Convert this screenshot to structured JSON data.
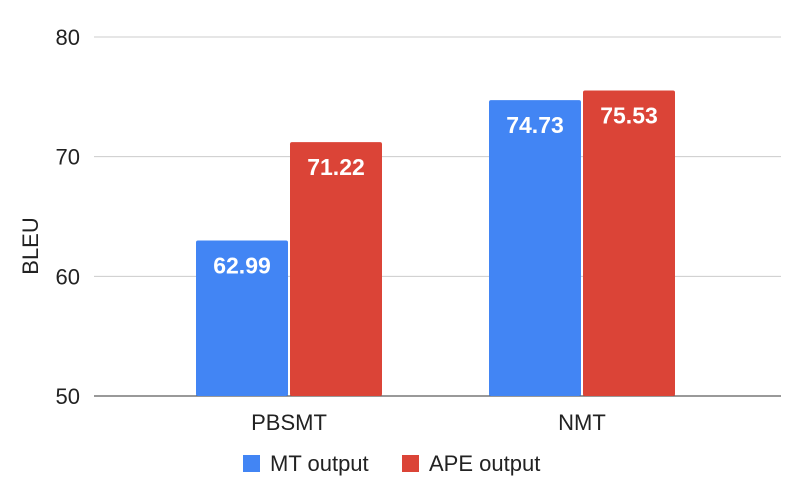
{
  "chart_data": {
    "type": "bar",
    "title": "",
    "xlabel": "",
    "ylabel": "BLEU",
    "categories": [
      "PBSMT",
      "NMT"
    ],
    "series": [
      {
        "name": "MT output",
        "values": [
          62.99,
          74.73
        ],
        "labels": [
          "62.99",
          "74.73"
        ],
        "color": "#4285f4"
      },
      {
        "name": "APE output",
        "values": [
          71.22,
          75.53
        ],
        "labels": [
          "71.22",
          "75.53"
        ],
        "color": "#db4437"
      }
    ],
    "ylim": [
      50,
      80
    ],
    "yticks": [
      "50",
      "60",
      "70",
      "80"
    ],
    "grid": true,
    "legend_position": "bottom"
  }
}
